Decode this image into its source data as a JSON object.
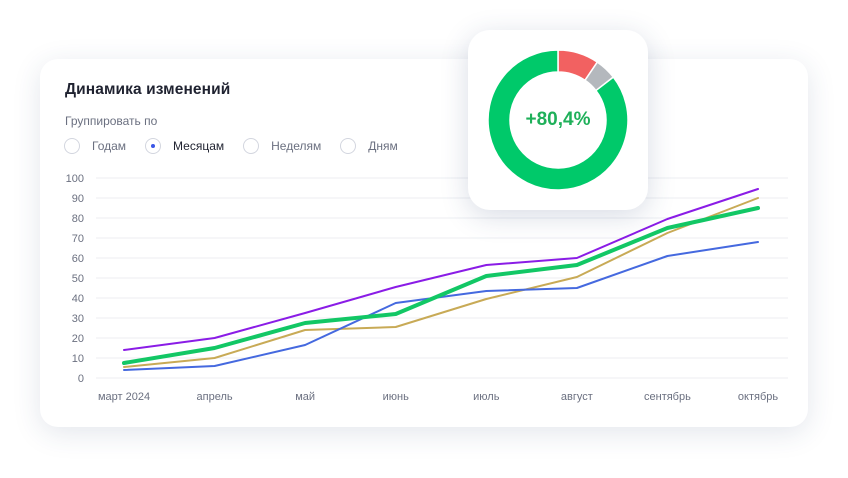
{
  "widget": {
    "title": "Динамика изменений",
    "group_label": "Группировать по",
    "options": [
      {
        "label": "Годам",
        "selected": false
      },
      {
        "label": "Месяцам",
        "selected": true
      },
      {
        "label": "Неделям",
        "selected": false
      },
      {
        "label": "Дням",
        "selected": false
      }
    ],
    "accent_color": "#3b57e6"
  },
  "donut": {
    "value_text": "+80,4%",
    "text_color": "#1fb05a",
    "segments": [
      {
        "value": 85.5,
        "color": "#00c96a"
      },
      {
        "value": 9.5,
        "color": "#f26161"
      },
      {
        "value": 5.0,
        "color": "#b4b8bd"
      }
    ]
  },
  "chart_data": {
    "type": "line",
    "categories": [
      "март 2024",
      "апрель",
      "май",
      "июнь",
      "июль",
      "август",
      "сентябрь",
      "октябрь"
    ],
    "ylim": [
      0,
      100
    ],
    "yticks": [
      0,
      10,
      20,
      30,
      40,
      50,
      60,
      70,
      80,
      90,
      100
    ],
    "grid": true,
    "series": [
      {
        "color": "#8a1ce6",
        "width": 2,
        "values": [
          14,
          20,
          32.5,
          45.5,
          56.5,
          60,
          79.5,
          94.5
        ]
      },
      {
        "color": "#c8aa56",
        "width": 2,
        "values": [
          5.5,
          10,
          24,
          25.5,
          39.5,
          50.5,
          72.5,
          90
        ]
      },
      {
        "color": "#4569df",
        "width": 2,
        "values": [
          4,
          6,
          16.5,
          37.5,
          43.5,
          45,
          61,
          68
        ]
      },
      {
        "color": "#12c765",
        "width": 4,
        "values": [
          7.5,
          15,
          27.5,
          32,
          51,
          56.5,
          75,
          85
        ]
      }
    ]
  }
}
